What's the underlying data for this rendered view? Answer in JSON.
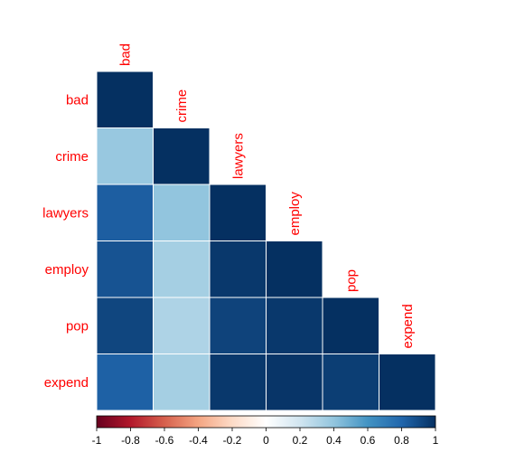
{
  "chart_data": {
    "type": "heatmap",
    "subtype": "correlation-matrix-lower-triangle",
    "variables": [
      "bad",
      "crime",
      "lawyers",
      "employ",
      "pop",
      "expend"
    ],
    "matrix": [
      [
        1.0,
        null,
        null,
        null,
        null,
        null
      ],
      [
        0.38,
        1.0,
        null,
        null,
        null,
        null
      ],
      [
        0.83,
        0.4,
        1.0,
        null,
        null,
        null
      ],
      [
        0.87,
        0.34,
        0.97,
        1.0,
        null,
        null
      ],
      [
        0.92,
        0.31,
        0.93,
        0.97,
        1.0,
        null
      ],
      [
        0.82,
        0.34,
        0.97,
        0.98,
        0.95,
        1.0
      ]
    ],
    "label_color": "#ff0000",
    "colorbar": {
      "range": [
        -1,
        1
      ],
      "ticks": [
        "-1",
        "-0.8",
        "-0.6",
        "-0.4",
        "-0.2",
        "0",
        "0.2",
        "0.4",
        "0.6",
        "0.8",
        "1"
      ],
      "stops": [
        "#67001f",
        "#b2182b",
        "#d6604d",
        "#f4a582",
        "#fddbc7",
        "#ffffff",
        "#d1e5f0",
        "#92c5de",
        "#4393c3",
        "#2166ac",
        "#053061"
      ]
    }
  }
}
